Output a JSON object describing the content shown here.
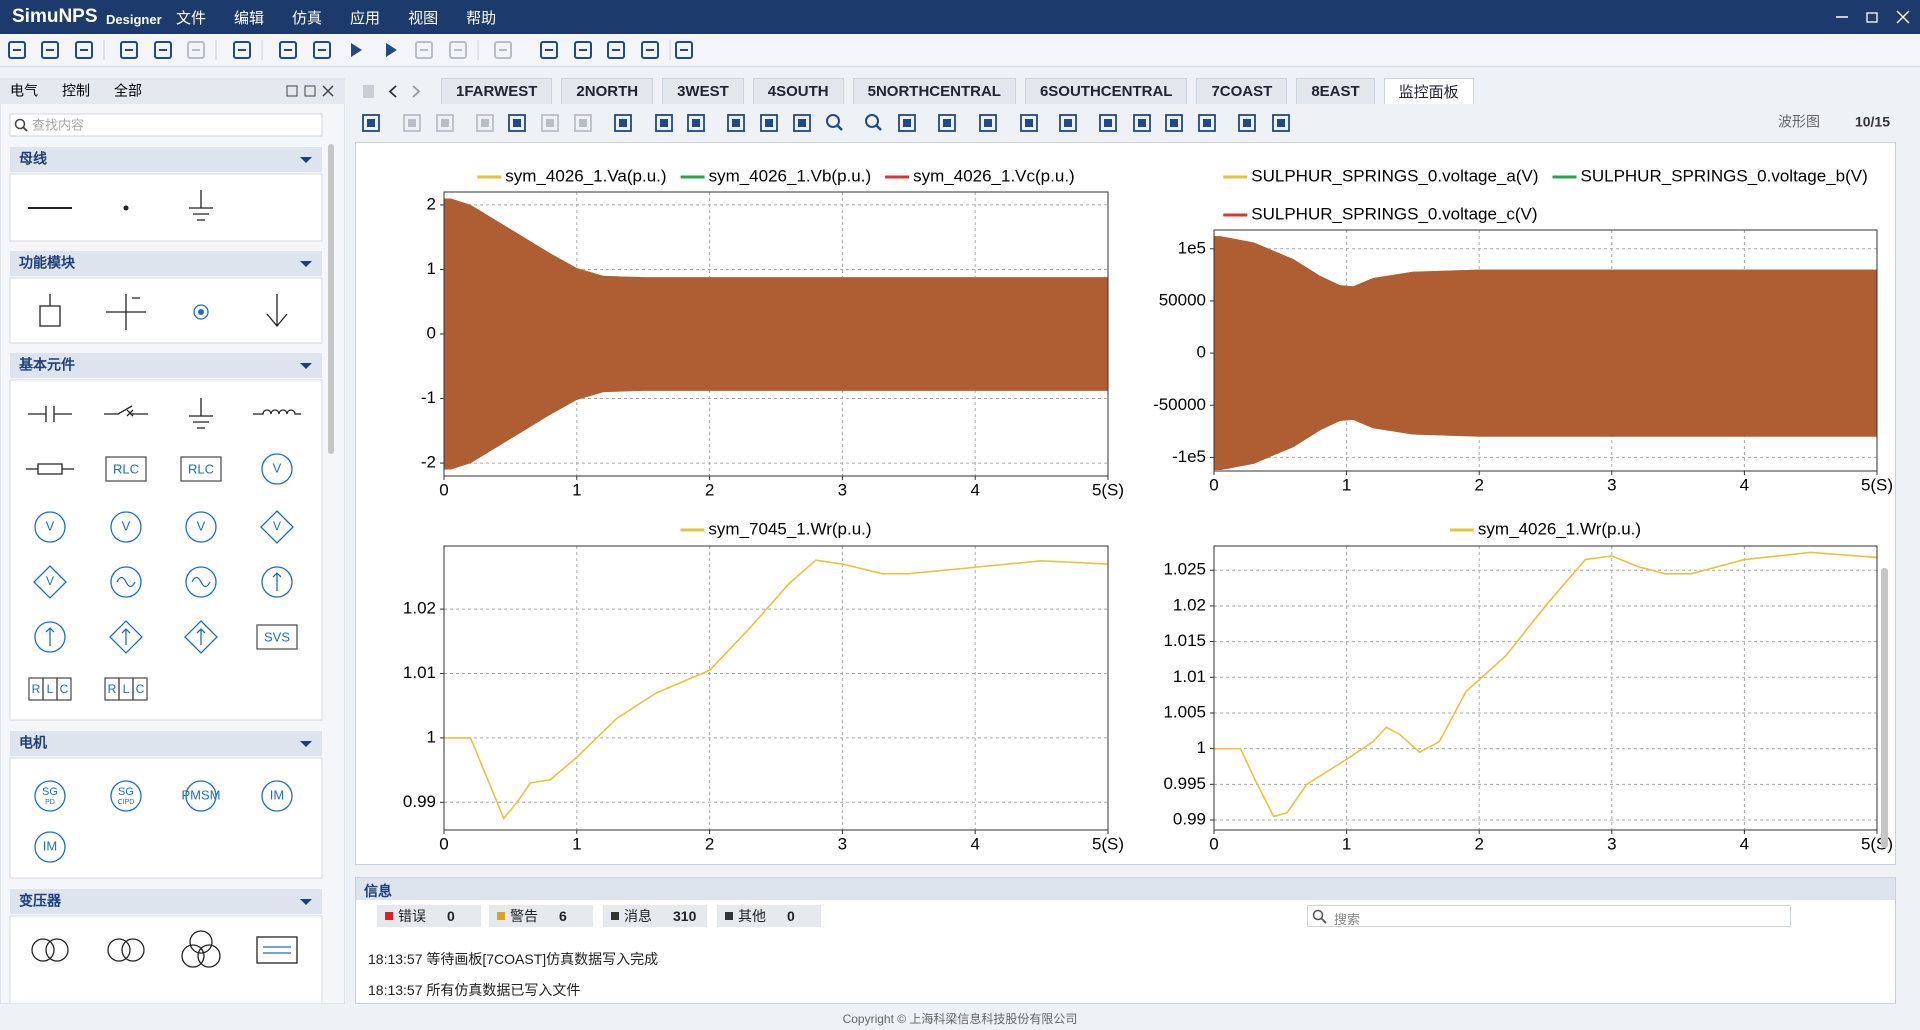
{
  "app": {
    "name": "SimuNPS",
    "edition": "Designer",
    "menu": [
      "文件",
      "编辑",
      "仿真",
      "应用",
      "视图",
      "帮助"
    ]
  },
  "left_panel": {
    "tabs": [
      "电气",
      "控制",
      "全部"
    ],
    "search_placeholder": "查找内容",
    "sections": [
      {
        "title": "母线"
      },
      {
        "title": "功能模块"
      },
      {
        "title": "基本元件",
        "icon_labels": [
          "RLC",
          "RLC",
          "V",
          "V",
          "V",
          "V",
          "V",
          "V",
          "SVS"
        ],
        "cell_labels": [
          "R",
          "L",
          "C",
          "R",
          "L",
          "C"
        ]
      },
      {
        "title": "电机",
        "icon_labels": [
          "SG",
          "PD",
          "SG",
          "CIPD",
          "PMSM",
          "IM",
          "IM"
        ]
      },
      {
        "title": "变压器"
      }
    ]
  },
  "tabs": {
    "items": [
      "1FARWEST",
      "2NORTH",
      "3WEST",
      "4SOUTH",
      "5NORTHCENTRAL",
      "6SOUTHCENTRAL",
      "7COAST",
      "8EAST",
      "监控面板"
    ],
    "active": 8
  },
  "waveform_counter": {
    "label": "波形图",
    "value": "10/15"
  },
  "chart_data": [
    {
      "type": "band",
      "x": [
        0,
        0.05,
        0.2,
        0.4,
        0.6,
        0.8,
        1.0,
        1.2,
        1.5,
        2,
        3,
        4,
        5
      ],
      "series": [
        {
          "name": "sym_4026_1.Va(p.u.)",
          "color": "#e6c235",
          "values": [
            2.1,
            2.1,
            2.0,
            1.75,
            1.5,
            1.25,
            1.02,
            0.9,
            0.88,
            0.88,
            0.88,
            0.88,
            0.88
          ]
        },
        {
          "name": "sym_4026_1.Vb(p.u.)",
          "color": "#22a84a",
          "values": [
            2.1,
            2.1,
            2.0,
            1.75,
            1.5,
            1.25,
            1.02,
            0.9,
            0.88,
            0.88,
            0.88,
            0.88,
            0.88
          ]
        },
        {
          "name": "sym_4026_1.Vc(p.u.)",
          "color": "#d33a2c",
          "values": [
            2.1,
            2.1,
            2.0,
            1.75,
            1.5,
            1.25,
            1.02,
            0.9,
            0.88,
            0.88,
            0.88,
            0.88,
            0.88
          ]
        }
      ],
      "xlim": [
        0,
        5
      ],
      "xticks": [
        0,
        1,
        2,
        3,
        4,
        {
          "value": 5,
          "label": "5(S)"
        }
      ],
      "ylim": [
        -2.2,
        2.2
      ],
      "yticks": [
        -2,
        -1,
        0,
        1,
        2
      ],
      "grid": true
    },
    {
      "type": "band",
      "x": [
        0,
        0.05,
        0.3,
        0.6,
        0.8,
        0.95,
        1.05,
        1.2,
        1.5,
        2,
        3,
        4,
        5
      ],
      "series": [
        {
          "name": "SULPHUR_SPRINGS_0.voltage_a(V)",
          "color": "#e6c235",
          "values": [
            112000,
            112000,
            106000,
            90000,
            74000,
            65000,
            64000,
            72000,
            78000,
            80000,
            80000,
            80000,
            80000
          ]
        },
        {
          "name": "SULPHUR_SPRINGS_0.voltage_b(V)",
          "color": "#22a84a",
          "values": [
            112000,
            112000,
            106000,
            90000,
            74000,
            65000,
            64000,
            72000,
            78000,
            80000,
            80000,
            80000,
            80000
          ]
        },
        {
          "name": "SULPHUR_SPRINGS_0.voltage_c(V)",
          "color": "#d33a2c",
          "values": [
            112000,
            112000,
            106000,
            90000,
            74000,
            65000,
            64000,
            72000,
            78000,
            80000,
            80000,
            80000,
            80000
          ]
        }
      ],
      "xlim": [
        0,
        5
      ],
      "xticks": [
        0,
        1,
        2,
        3,
        4,
        {
          "value": 5,
          "label": "5(S)"
        }
      ],
      "ylim": [
        -113000,
        118000
      ],
      "yticks": [
        {
          "value": -100000,
          "label": "-1e5"
        },
        -50000,
        0,
        50000,
        {
          "value": 100000,
          "label": "1e5"
        }
      ],
      "grid": true
    },
    {
      "type": "line",
      "x": [
        0,
        0.2,
        0.3,
        0.45,
        0.55,
        0.65,
        0.8,
        1.0,
        1.3,
        1.6,
        2.0,
        2.3,
        2.6,
        2.8,
        3.0,
        3.3,
        3.5,
        4.0,
        4.5,
        5.0
      ],
      "series": [
        {
          "name": "sym_7045_1.Wr(p.u.)",
          "color": "#e6c440",
          "values": [
            1.0,
            1.0,
            0.995,
            0.9875,
            0.99,
            0.993,
            0.9935,
            0.997,
            1.003,
            1.007,
            1.0105,
            1.017,
            1.024,
            1.0276,
            1.027,
            1.0255,
            1.0255,
            1.0265,
            1.0275,
            1.027
          ]
        }
      ],
      "xlim": [
        0,
        5
      ],
      "xticks": [
        0,
        1,
        2,
        3,
        4,
        {
          "value": 5,
          "label": "5(S)"
        }
      ],
      "ylim": [
        0.9857,
        1.0298
      ],
      "yticks": [
        0.99,
        1,
        1.01,
        1.02
      ],
      "grid": true
    },
    {
      "type": "line",
      "x": [
        0,
        0.2,
        0.3,
        0.45,
        0.55,
        0.7,
        1.0,
        1.2,
        1.3,
        1.4,
        1.55,
        1.7,
        1.9,
        2.2,
        2.5,
        2.8,
        3.0,
        3.2,
        3.4,
        3.6,
        4.0,
        4.5,
        5.0
      ],
      "series": [
        {
          "name": "sym_4026_1.Wr(p.u.)",
          "color": "#e6c440",
          "values": [
            1.0,
            1.0,
            0.996,
            0.9905,
            0.991,
            0.995,
            0.9985,
            1.001,
            1.003,
            1.002,
            0.9995,
            1.001,
            1.008,
            1.013,
            1.02,
            1.0265,
            1.027,
            1.0255,
            1.0245,
            1.0245,
            1.0265,
            1.0275,
            1.0268
          ]
        }
      ],
      "xlim": [
        0,
        5
      ],
      "xticks": [
        0,
        1,
        2,
        3,
        4,
        {
          "value": 5,
          "label": "5(S)"
        }
      ],
      "ylim": [
        0.9886,
        1.0284
      ],
      "yticks": [
        0.99,
        0.995,
        1,
        1.005,
        1.01,
        1.015,
        1.02,
        1.025
      ],
      "grid": true
    }
  ],
  "info": {
    "title": "信息",
    "counters": [
      {
        "label": "错误",
        "count": 0,
        "color": "#e02020"
      },
      {
        "label": "警告",
        "count": 6,
        "color": "#e0a020"
      },
      {
        "label": "消息",
        "count": 310,
        "color": "#333333"
      },
      {
        "label": "其他",
        "count": 0,
        "color": "#333333"
      }
    ],
    "search_placeholder": "搜索",
    "log": [
      "18:13:57 等待画板[7COAST]仿真数据写入完成",
      "18:13:57 所有仿真数据已写入文件"
    ]
  },
  "footer": "Copyright © 上海科梁信息科技股份有限公司"
}
